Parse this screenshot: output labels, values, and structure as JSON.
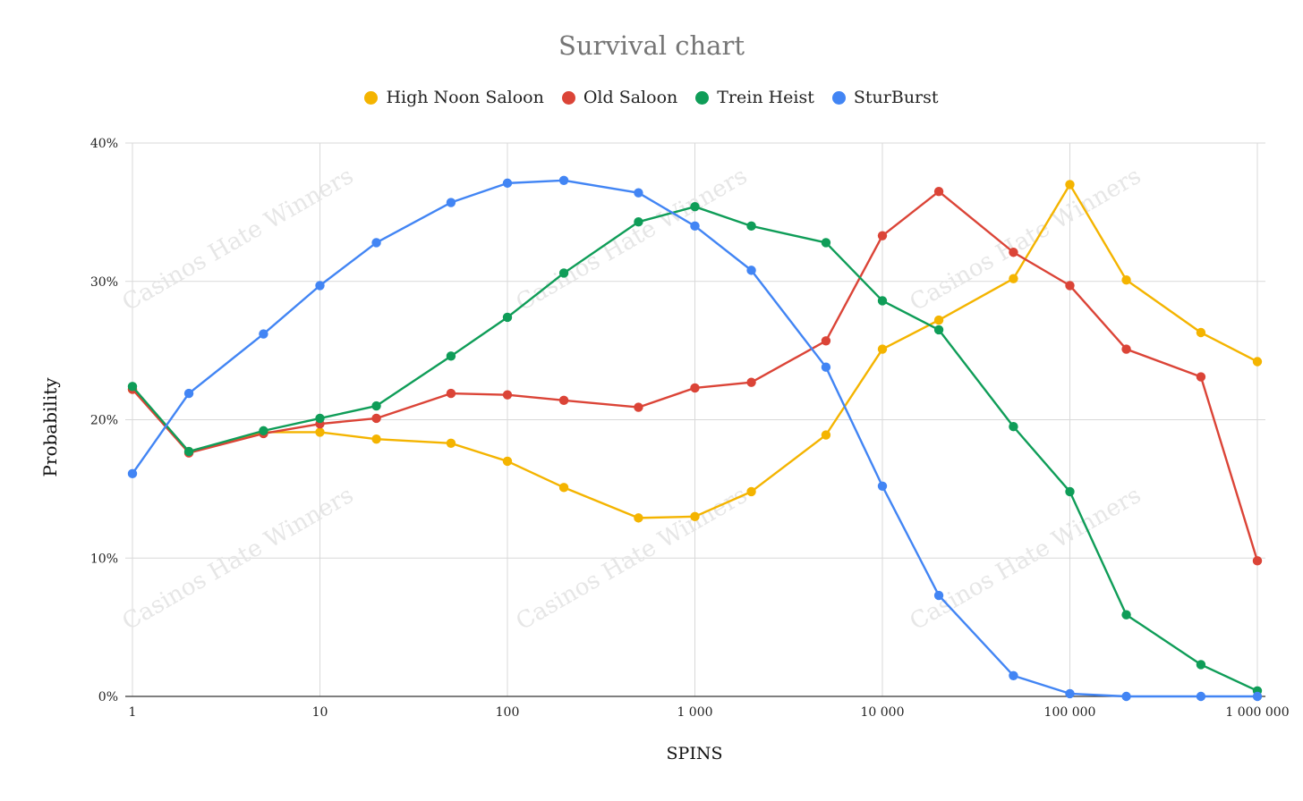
{
  "chart_data": {
    "type": "line",
    "title": "Survival chart",
    "xlabel": "SPINS",
    "ylabel": "Probability",
    "x_scale": "log",
    "xlim": [
      1,
      1000000
    ],
    "ylim": [
      0,
      40
    ],
    "y_ticks": [
      "0%",
      "10%",
      "20%",
      "30%",
      "40%"
    ],
    "x_ticks": [
      {
        "value": 1,
        "label": "1"
      },
      {
        "value": 10,
        "label": "10"
      },
      {
        "value": 100,
        "label": "100"
      },
      {
        "value": 1000,
        "label": "1 000"
      },
      {
        "value": 10000,
        "label": "10 000"
      },
      {
        "value": 100000,
        "label": "100 000"
      },
      {
        "value": 1000000,
        "label": "1 000 000"
      }
    ],
    "x": [
      1,
      2,
      5,
      10,
      20,
      50,
      100,
      200,
      500,
      1000,
      2000,
      5000,
      10000,
      20000,
      50000,
      100000,
      200000,
      500000,
      1000000
    ],
    "legend_position": "top",
    "grid": true,
    "watermark": "Casinos Hate Winners",
    "series": [
      {
        "name": "High Noon Saloon",
        "color": "#f4b400",
        "values": [
          22.2,
          17.7,
          19.1,
          19.1,
          18.6,
          18.3,
          17.0,
          15.1,
          12.9,
          13.0,
          14.8,
          18.9,
          25.1,
          27.2,
          30.2,
          37.0,
          30.1,
          26.3,
          24.2
        ]
      },
      {
        "name": "Old Saloon",
        "color": "#db4437",
        "values": [
          22.2,
          17.6,
          19.0,
          19.7,
          20.1,
          21.9,
          21.8,
          21.4,
          20.9,
          22.3,
          22.7,
          25.7,
          33.3,
          36.5,
          32.1,
          29.7,
          25.1,
          23.1,
          9.8
        ]
      },
      {
        "name": "Trein Heist",
        "color": "#0f9d58",
        "values": [
          22.4,
          17.7,
          19.2,
          20.1,
          21.0,
          24.6,
          27.4,
          30.6,
          34.3,
          35.4,
          34.0,
          32.8,
          28.6,
          26.5,
          19.5,
          14.8,
          5.9,
          2.3,
          0.4
        ]
      },
      {
        "name": "SturBurst",
        "color": "#4285f4",
        "values": [
          16.1,
          21.9,
          26.2,
          29.7,
          32.8,
          35.7,
          37.1,
          37.3,
          36.4,
          34.0,
          30.8,
          23.8,
          15.2,
          7.3,
          1.5,
          0.2,
          0.0,
          0.0,
          0.0
        ]
      }
    ]
  }
}
